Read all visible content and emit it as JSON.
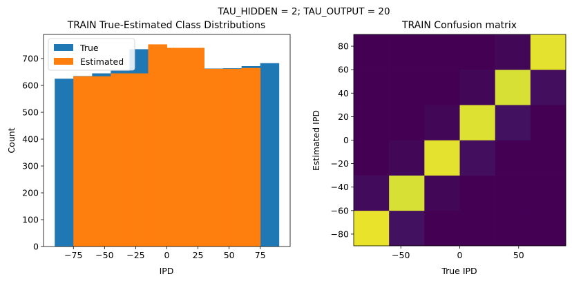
{
  "suptitle": "TAU_HIDDEN = 2; TAU_OUTPUT = 20",
  "chart_data": [
    {
      "type": "bar",
      "title": "TRAIN True-Estimated Class Distributions",
      "xlabel": "IPD",
      "ylabel": "Count",
      "xlim": [
        -99,
        99
      ],
      "ylim": [
        0,
        790
      ],
      "xticks": [
        -75,
        -50,
        -25,
        0,
        25,
        50,
        75
      ],
      "xtick_labels": [
        "−75",
        "−50",
        "−25",
        "0",
        "25",
        "50",
        "75"
      ],
      "yticks": [
        0,
        100,
        200,
        300,
        400,
        500,
        600,
        700
      ],
      "yticklabels": [
        "0",
        "100",
        "200",
        "300",
        "400",
        "500",
        "600",
        "700"
      ],
      "legend": {
        "position": "top-left",
        "entries": [
          "True",
          "Estimated"
        ]
      },
      "colors": {
        "True": "#1f77b4",
        "Estimated": "#ff7f0e"
      },
      "series": [
        {
          "name": "True",
          "bins": [
            [
              -90,
              -75
            ],
            [
              -75,
              -60
            ],
            [
              -60,
              -45
            ],
            [
              -45,
              -30
            ],
            [
              -30,
              -15
            ],
            [
              -15,
              0
            ],
            [
              0,
              15
            ],
            [
              15,
              30
            ],
            [
              30,
              45
            ],
            [
              45,
              60
            ],
            [
              60,
              75
            ],
            [
              75,
              90
            ]
          ],
          "values": [
            625,
            635,
            645,
            655,
            735,
            745,
            740,
            735,
            663,
            664,
            672,
            683
          ]
        },
        {
          "name": "Estimated",
          "bins": [
            [
              -75,
              -60
            ],
            [
              -60,
              -45
            ],
            [
              -45,
              -30
            ],
            [
              -30,
              -15
            ],
            [
              -15,
              0
            ],
            [
              0,
              15
            ],
            [
              15,
              30
            ],
            [
              30,
              45
            ],
            [
              45,
              60
            ],
            [
              60,
              75
            ]
          ],
          "values": [
            634,
            634,
            645,
            645,
            753,
            740,
            740,
            662,
            662,
            665
          ]
        }
      ]
    },
    {
      "type": "heatmap",
      "title": "TRAIN Confusion matrix",
      "xlabel": "True IPD",
      "ylabel": "Estimated IPD",
      "xlim": [
        -90,
        90
      ],
      "ylim": [
        -90,
        90
      ],
      "xticks": [
        -50,
        0,
        50
      ],
      "xtick_labels": [
        "−50",
        "0",
        "50"
      ],
      "yticks": [
        -80,
        -60,
        -40,
        -20,
        0,
        20,
        40,
        60,
        80
      ],
      "yticklabels": [
        "−80",
        "−60",
        "−40",
        "−20",
        "0",
        "20",
        "40",
        "60",
        "80"
      ],
      "x_edges": [
        -90,
        -60,
        -30,
        0,
        30,
        60,
        90
      ],
      "y_edges": [
        -90,
        -60,
        -30,
        0,
        30,
        60,
        90
      ],
      "colormap": "viridis",
      "matrix": [
        [
          0.97,
          0.05,
          0.0,
          0.0,
          0.0,
          0.0
        ],
        [
          0.03,
          0.94,
          0.02,
          0.0,
          0.0,
          0.0
        ],
        [
          0.0,
          0.02,
          0.96,
          0.04,
          0.0,
          0.0
        ],
        [
          0.0,
          0.0,
          0.02,
          0.95,
          0.05,
          0.0
        ],
        [
          0.0,
          0.0,
          0.0,
          0.02,
          0.94,
          0.04
        ],
        [
          0.0,
          0.0,
          0.0,
          0.0,
          0.02,
          0.96
        ]
      ]
    }
  ]
}
